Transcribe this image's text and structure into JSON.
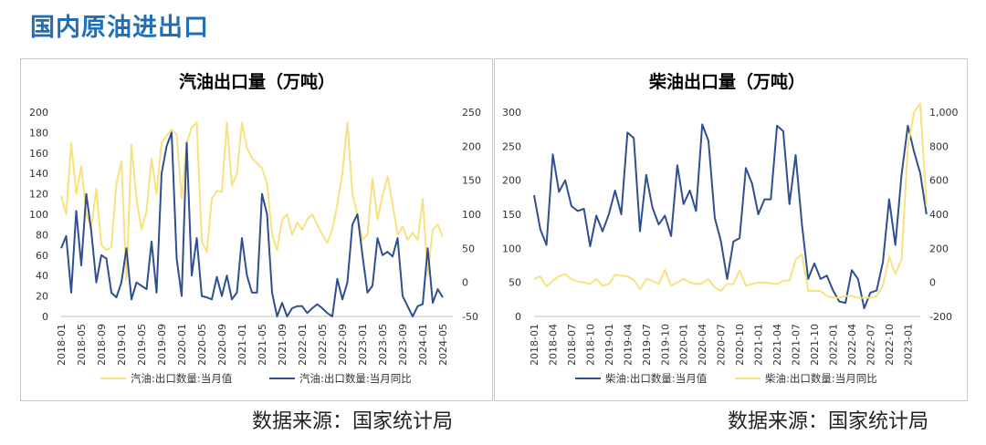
{
  "page": {
    "title": "国内原油进出口"
  },
  "sources": {
    "left": "数据来源：国家统计局",
    "right": "数据来源：国家统计局"
  },
  "colors": {
    "navy": "#2f4f8f",
    "yellow": "#f8e17f"
  },
  "chart_data": [
    {
      "type": "line",
      "title": "汽油出口量（万吨）",
      "x_tick_labels": [
        "2018-01",
        "2018-05",
        "2018-09",
        "2019-01",
        "2019-05",
        "2019-09",
        "2020-01",
        "2020-05",
        "2020-09",
        "2021-01",
        "2021-05",
        "2021-09",
        "2022-01",
        "2022-05",
        "2022-09",
        "2023-01",
        "2023-05",
        "2023-09",
        "2024-01",
        "2024-05"
      ],
      "x_start": "2018-01",
      "x_end": "2024-07",
      "y_left": {
        "min": 0,
        "max": 200,
        "ticks": [
          "0",
          "20",
          "40",
          "60",
          "80",
          "100",
          "120",
          "140",
          "160",
          "180",
          "200"
        ]
      },
      "y_right": {
        "min": -50,
        "max": 250,
        "ticks": [
          "-50",
          "0",
          "50",
          "100",
          "150",
          "200",
          "250"
        ]
      },
      "grid": false,
      "legend_position": "bottom",
      "series": [
        {
          "name": "汽油:出口数量:当月值",
          "axis": "left",
          "color": "#f8e17f",
          "values": [
            118,
            100,
            170,
            120,
            147,
            100,
            87,
            125,
            70,
            65,
            68,
            130,
            152,
            35,
            168,
            115,
            85,
            103,
            155,
            120,
            170,
            177,
            183,
            178,
            115,
            170,
            185,
            190,
            74,
            63,
            115,
            123,
            122,
            190,
            128,
            140,
            190,
            165,
            155,
            150,
            145,
            130,
            80,
            65,
            95,
            100,
            80,
            92,
            85,
            95,
            100,
            90,
            80,
            72,
            85,
            110,
            140,
            190,
            120,
            100,
            75,
            80,
            135,
            95,
            118,
            137,
            110,
            80,
            88,
            75,
            82,
            75,
            115,
            40,
            85,
            90,
            78
          ]
        },
        {
          "name": "汽油:出口数量:当月同比",
          "axis": "right",
          "color": "#2f4f8f",
          "values": [
            50,
            68,
            -15,
            105,
            25,
            130,
            75,
            0,
            40,
            35,
            -15,
            -22,
            0,
            50,
            -25,
            0,
            -5,
            -10,
            60,
            -15,
            160,
            200,
            220,
            35,
            -20,
            205,
            10,
            65,
            -20,
            -22,
            -25,
            8,
            -20,
            10,
            -25,
            -15,
            65,
            10,
            -15,
            -15,
            130,
            100,
            -15,
            -50,
            -30,
            -50,
            -38,
            -35,
            -35,
            -45,
            -38,
            -32,
            -38,
            -45,
            -50,
            5,
            -25,
            0,
            85,
            100,
            40,
            -15,
            -5,
            65,
            40,
            45,
            38,
            65,
            -20,
            -35,
            -50,
            -35,
            -32,
            50,
            -30,
            -10,
            -22
          ]
        }
      ]
    },
    {
      "type": "line",
      "title": "柴油出口量（万吨）",
      "x_tick_labels": [
        "2018-01",
        "2018-04",
        "2018-07",
        "2018-10",
        "2019-01",
        "2019-04",
        "2019-07",
        "2019-10",
        "2020-01",
        "2020-04",
        "2020-07",
        "2020-10",
        "2021-01",
        "2021-04",
        "2021-07",
        "2021-10",
        "2022-01",
        "2022-04",
        "2022-07",
        "2022-10",
        "2023-01"
      ],
      "x_start": "2018-01",
      "x_end": "2023-03",
      "y_left": {
        "min": 0,
        "max": 300,
        "ticks": [
          "0",
          "50",
          "100",
          "150",
          "200",
          "250",
          "300"
        ]
      },
      "y_right": {
        "min": -200,
        "max": 1000,
        "ticks": [
          "-200",
          "0",
          "200",
          "400",
          "600",
          "800",
          "1,000"
        ]
      },
      "grid": false,
      "legend_position": "bottom",
      "series": [
        {
          "name": "柴油:出口数量:当月值",
          "axis": "left",
          "color": "#2f4f8f",
          "values": [
            178,
            128,
            105,
            238,
            183,
            200,
            162,
            155,
            158,
            103,
            148,
            125,
            150,
            185,
            150,
            270,
            262,
            125,
            208,
            160,
            135,
            148,
            118,
            222,
            165,
            185,
            155,
            282,
            258,
            145,
            110,
            55,
            110,
            115,
            218,
            195,
            150,
            172,
            172,
            280,
            272,
            165,
            237,
            135,
            55,
            78,
            55,
            60,
            38,
            22,
            20,
            68,
            55,
            12,
            35,
            38,
            80,
            172,
            105,
            208,
            280,
            242,
            210,
            150
          ]
        },
        {
          "name": "柴油:出口数量:当月同比",
          "axis": "right",
          "color": "#f8e17f",
          "values": [
            20,
            35,
            -25,
            10,
            35,
            50,
            20,
            5,
            0,
            -10,
            20,
            -20,
            -10,
            45,
            40,
            35,
            15,
            -40,
            20,
            10,
            -10,
            75,
            -20,
            0,
            20,
            0,
            -10,
            -5,
            20,
            -30,
            -50,
            -10,
            -10,
            70,
            -20,
            -10,
            0,
            0,
            -5,
            -10,
            10,
            10,
            135,
            165,
            -50,
            -50,
            -50,
            -80,
            -90,
            -90,
            -80,
            -80,
            -90,
            -90,
            -90,
            -80,
            -20,
            150,
            50,
            135,
            800,
            1000,
            1050,
            450
          ]
        }
      ]
    }
  ]
}
